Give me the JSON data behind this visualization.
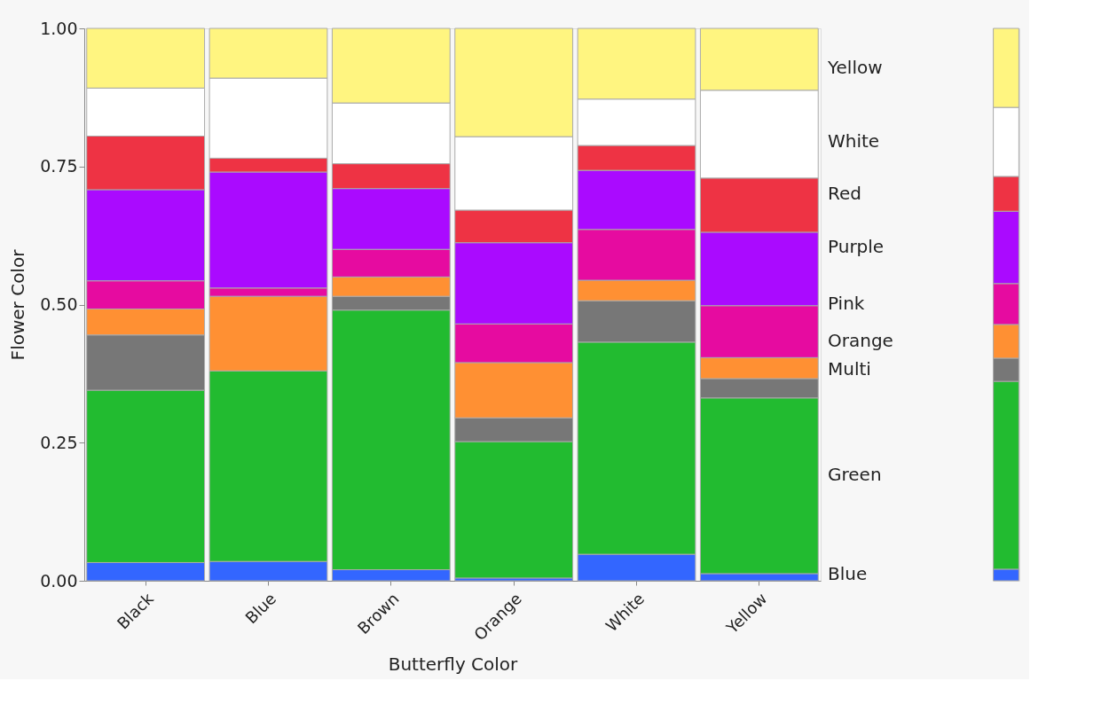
{
  "chart_data": [
    {
      "type": "bar",
      "stacked": true,
      "xlabel": "Butterfly Color",
      "ylabel": "Flower Color",
      "categories": [
        "Black",
        "Blue",
        "Brown",
        "Orange",
        "White",
        "Yellow"
      ],
      "ylim": [
        0,
        1
      ],
      "yticks": [
        {
          "value": 0,
          "label": "0.00"
        },
        {
          "value": 0.25,
          "label": "0.25"
        },
        {
          "value": 0.5,
          "label": "0.50"
        },
        {
          "value": 0.75,
          "label": "0.75"
        },
        {
          "value": 1,
          "label": "1.00"
        }
      ],
      "grid": false,
      "legend": "right",
      "series": [
        {
          "name": "Blue",
          "color": "#3366ff",
          "values": [
            0.033,
            0.035,
            0.02,
            0.005,
            0.048,
            0.013
          ]
        },
        {
          "name": "Green",
          "color": "#22bb30",
          "values": [
            0.312,
            0.345,
            0.47,
            0.247,
            0.384,
            0.318
          ]
        },
        {
          "name": "Multi",
          "color": "#777777",
          "values": [
            0.1,
            0,
            0.025,
            0.043,
            0.075,
            0.035
          ]
        },
        {
          "name": "Orange",
          "color": "#ff9033",
          "values": [
            0.047,
            0.135,
            0.035,
            0.1,
            0.037,
            0.038
          ]
        },
        {
          "name": "Pink",
          "color": "#e60ba0",
          "values": [
            0.051,
            0.015,
            0.05,
            0.07,
            0.092,
            0.094
          ]
        },
        {
          "name": "Purple",
          "color": "#aa0aff",
          "values": [
            0.165,
            0.21,
            0.11,
            0.147,
            0.107,
            0.133
          ]
        },
        {
          "name": "Red",
          "color": "#ee3344",
          "values": [
            0.097,
            0.025,
            0.045,
            0.059,
            0.045,
            0.098
          ]
        },
        {
          "name": "White",
          "color": "#ffffff",
          "values": [
            0.087,
            0.145,
            0.11,
            0.133,
            0.084,
            0.159
          ]
        },
        {
          "name": "Yellow",
          "color": "#fff580",
          "values": [
            0.108,
            0.09,
            0.135,
            0.196,
            0.128,
            0.112
          ]
        }
      ]
    },
    {
      "type": "bar",
      "stacked": true,
      "categories": [
        null
      ],
      "ylim": [
        0,
        1
      ],
      "tick_labels": false,
      "grid": false,
      "series": [
        {
          "color": "#3366ff",
          "values": [
            0.021
          ]
        },
        {
          "color": "#22bb30",
          "values": [
            0.34
          ]
        },
        {
          "color": "#777777",
          "values": [
            0.042
          ]
        },
        {
          "color": "#ff9033",
          "values": [
            0.061
          ]
        },
        {
          "color": "#e60ba0",
          "values": [
            0.074
          ]
        },
        {
          "color": "#aa0aff",
          "values": [
            0.131
          ]
        },
        {
          "color": "#ee3344",
          "values": [
            0.063
          ]
        },
        {
          "color": "#ffffff",
          "values": [
            0.125
          ]
        },
        {
          "color": "#fff580",
          "values": [
            0.143
          ]
        }
      ]
    }
  ]
}
